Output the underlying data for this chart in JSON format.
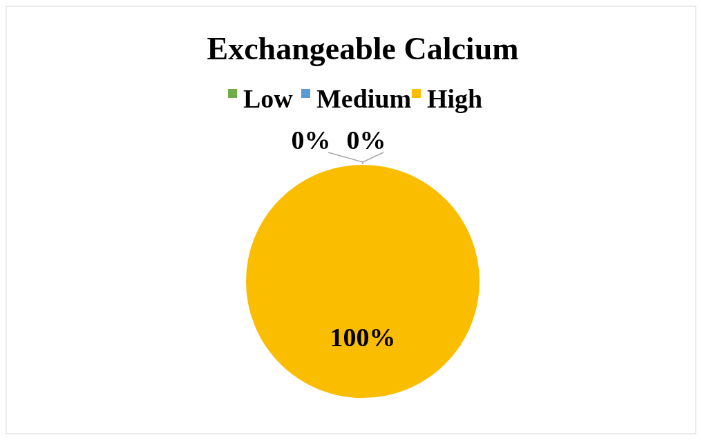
{
  "chart_data": {
    "type": "pie",
    "title": "Exchangeable Calcium",
    "categories": [
      "Low",
      "Medium",
      "High"
    ],
    "values": [
      0,
      0,
      100
    ],
    "colors": [
      "#70ad47",
      "#5b9bd5",
      "#fbbd00"
    ],
    "value_labels": [
      "0%",
      "0%",
      "100%"
    ],
    "legend": "top"
  }
}
